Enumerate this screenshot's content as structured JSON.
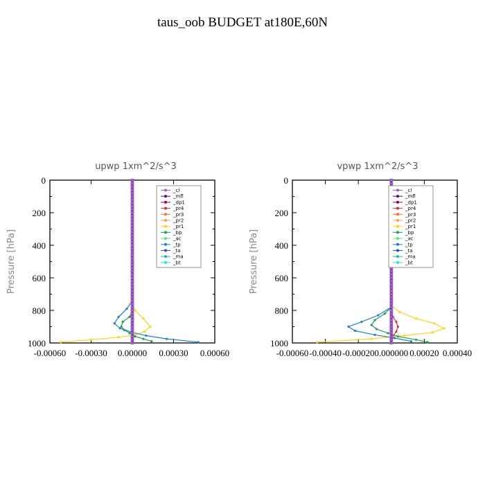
{
  "title": "taus_oob  BUDGET at180E,60N",
  "legend_labels": [
    "_cl",
    "_mfl",
    "_dp1",
    "_pr4",
    "_pr3",
    "_pr2",
    "_pr1",
    "_bp",
    "_ac",
    "_tp",
    "_ta",
    "_ma",
    "_bt"
  ],
  "series_colors": {
    "_cl": "#9a5fc8",
    "_mfl": "#6a0078",
    "_dp1": "#a0003c",
    "_pr4": "#d8302a",
    "_pr3": "#ff6a3c",
    "_pr2": "#ffa040",
    "_pr1": "#ffd21e",
    "_bp": "#1aa24a",
    "_ac": "#5ee07a",
    "_tp": "#1e7ec8",
    "_ta": "#2a4adc",
    "_ma": "#1ab4c8",
    "_bt": "#28e0e0"
  },
  "chart_data": [
    {
      "type": "line",
      "title": "upwp   1xm^2/s^3",
      "ylabel": "Pressure [hPa]",
      "xlim": [
        -0.0006,
        0.0006
      ],
      "ylim": [
        1000,
        0
      ],
      "y_reversed": true,
      "xtick_labels": [
        "-0.00060",
        "-0.00030",
        "0.00000",
        "0.00030",
        "0.00060"
      ],
      "xtick_values": [
        -0.0006,
        -0.0003,
        0,
        0.0003,
        0.0006
      ],
      "ytick_labels": [
        "0",
        "200",
        "400",
        "600",
        "800",
        "1000"
      ],
      "ytick_values": [
        0,
        200,
        400,
        600,
        800,
        1000
      ],
      "legend_position": "top-right",
      "series": [
        {
          "name": "_cl",
          "x": [
            0,
            0,
            0,
            0,
            0,
            0,
            0,
            0
          ],
          "y": [
            0,
            150,
            300,
            450,
            600,
            750,
            900,
            1000
          ]
        },
        {
          "name": "_mfl",
          "x": [
            0,
            0,
            0,
            0,
            0,
            0,
            0,
            0
          ],
          "y": [
            0,
            150,
            300,
            450,
            600,
            750,
            900,
            1000
          ]
        },
        {
          "name": "_dp1",
          "x": [
            0,
            0,
            0,
            0,
            0,
            0,
            0,
            0
          ],
          "y": [
            0,
            150,
            300,
            450,
            600,
            750,
            900,
            1000
          ]
        },
        {
          "name": "_pr1",
          "x": [
            0,
            2e-05,
            8e-05,
            0.00013,
            9e-05,
            2e-05,
            -0.0001,
            -0.0003,
            -0.00052
          ],
          "y": [
            760,
            800,
            850,
            900,
            930,
            950,
            965,
            980,
            995
          ]
        },
        {
          "name": "_bp",
          "x": [
            0,
            -2e-05,
            -7e-05,
            -8e-05,
            -6e-05,
            -2e-05,
            2e-05,
            8e-05,
            0.00014
          ],
          "y": [
            800,
            840,
            870,
            900,
            920,
            940,
            960,
            975,
            990
          ]
        },
        {
          "name": "_tp",
          "x": [
            0,
            -4e-05,
            -0.0001,
            -0.00013,
            -9e-05,
            0,
            0.0001,
            0.00025,
            0.00048
          ],
          "y": [
            740,
            790,
            840,
            880,
            910,
            935,
            955,
            975,
            995
          ]
        }
      ]
    },
    {
      "type": "line",
      "title": "vpwp   1xm^2/s^3",
      "ylabel": "Pressure [hPa]",
      "xlim": [
        -0.0006,
        0.0004
      ],
      "ylim": [
        1000,
        0
      ],
      "y_reversed": true,
      "xtick_labels": [
        "-0.00060",
        "-0.00040",
        "-0.00020",
        "0.000000",
        "0.00020",
        "0.00040"
      ],
      "xtick_values": [
        -0.0006,
        -0.0004,
        -0.0002,
        0,
        0.0002,
        0.0004
      ],
      "ytick_labels": [
        "0",
        "200",
        "400",
        "600",
        "800",
        "1000"
      ],
      "ytick_values": [
        0,
        200,
        400,
        600,
        800,
        1000
      ],
      "legend_position": "top-right",
      "series": [
        {
          "name": "_cl",
          "x": [
            0,
            0,
            0,
            0,
            0,
            0,
            0,
            0
          ],
          "y": [
            0,
            150,
            300,
            450,
            600,
            750,
            900,
            1000
          ]
        },
        {
          "name": "_mfl",
          "x": [
            0,
            0,
            0,
            0,
            0,
            0,
            0,
            0
          ],
          "y": [
            0,
            150,
            300,
            450,
            600,
            750,
            900,
            1000
          ]
        },
        {
          "name": "_dp1",
          "x": [
            0,
            0,
            0,
            0,
            0,
            0,
            0,
            0
          ],
          "y": [
            0,
            150,
            300,
            450,
            600,
            750,
            900,
            1000
          ]
        },
        {
          "name": "_pr4",
          "x": [
            0,
            1e-05,
            3e-05,
            4e-05,
            3e-05,
            1e-05,
            0
          ],
          "y": [
            800,
            840,
            870,
            900,
            930,
            960,
            990
          ]
        },
        {
          "name": "_pr1",
          "x": [
            0,
            5e-05,
            0.00015,
            0.00026,
            0.00032,
            0.00025,
            8e-05,
            -0.00012,
            -0.00045
          ],
          "y": [
            770,
            810,
            850,
            880,
            910,
            935,
            955,
            975,
            995
          ]
        },
        {
          "name": "_bp",
          "x": [
            0,
            -4e-05,
            -0.0001,
            -0.00012,
            -9e-05,
            -2e-05,
            4e-05,
            0.00015,
            0.00022
          ],
          "y": [
            780,
            820,
            860,
            890,
            915,
            940,
            960,
            980,
            995
          ]
        },
        {
          "name": "_tp",
          "x": [
            0,
            -8e-05,
            -0.00018,
            -0.00026,
            -0.00022,
            -0.0001,
            2e-05,
            0.00012
          ],
          "y": [
            780,
            830,
            870,
            900,
            925,
            950,
            970,
            990
          ]
        }
      ]
    }
  ]
}
